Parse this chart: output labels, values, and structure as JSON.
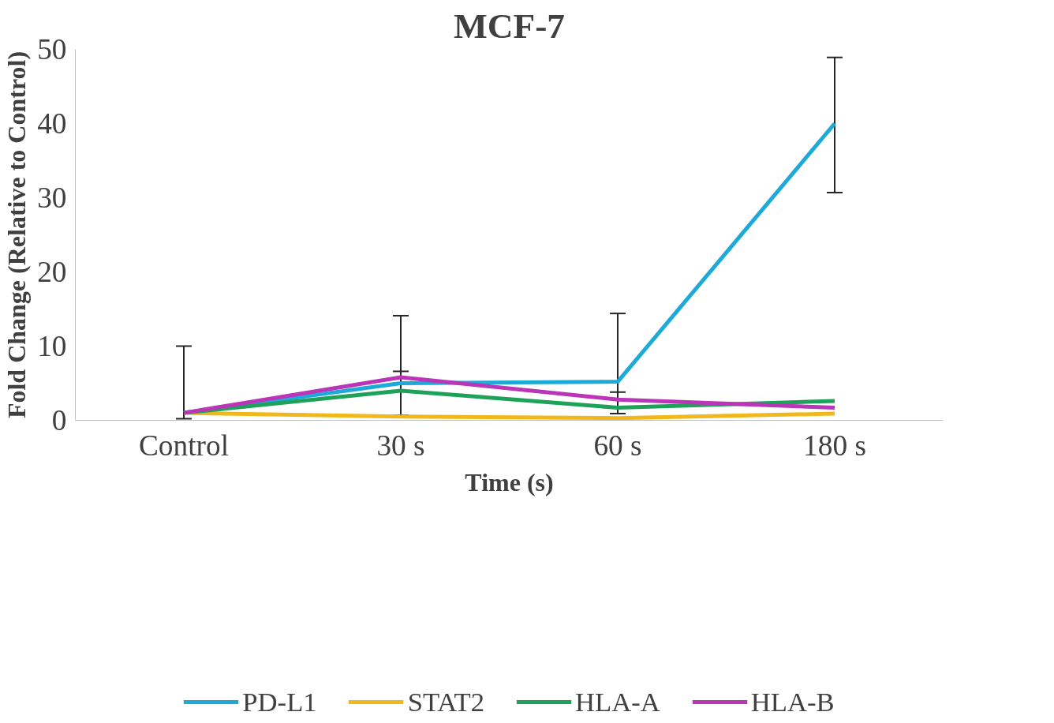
{
  "chart_data": {
    "type": "line",
    "title": "MCF-7",
    "xlabel": "Time (s)",
    "ylabel": "Fold Change (Relative to Control)",
    "categories": [
      "Control",
      "30 s",
      "60 s",
      "180 s"
    ],
    "ylim": [
      0,
      50
    ],
    "yticks": [
      0,
      10,
      20,
      30,
      40,
      50
    ],
    "grid": false,
    "legend": "bottom",
    "marker": "none",
    "line_style": "solid",
    "series": [
      {
        "name": "PD-L1",
        "color": "#1eaad8",
        "values": [
          1,
          5,
          5.2,
          40
        ],
        "errors": [
          [
            0.2,
            10
          ],
          [
            0.7,
            14.1
          ],
          [
            0.9,
            14.4
          ],
          [
            30.7,
            48.9
          ]
        ]
      },
      {
        "name": "STAT2",
        "color": "#f0b81c",
        "values": [
          1,
          0.5,
          0.3,
          0.9
        ]
      },
      {
        "name": "HLA-A",
        "color": "#1ea25a",
        "values": [
          1,
          4,
          1.7,
          2.6
        ]
      },
      {
        "name": "HLA-B",
        "color": "#bb35b8",
        "values": [
          1,
          5.8,
          2.8,
          1.7
        ],
        "errors": [
          null,
          0.8,
          1,
          null
        ]
      }
    ]
  }
}
